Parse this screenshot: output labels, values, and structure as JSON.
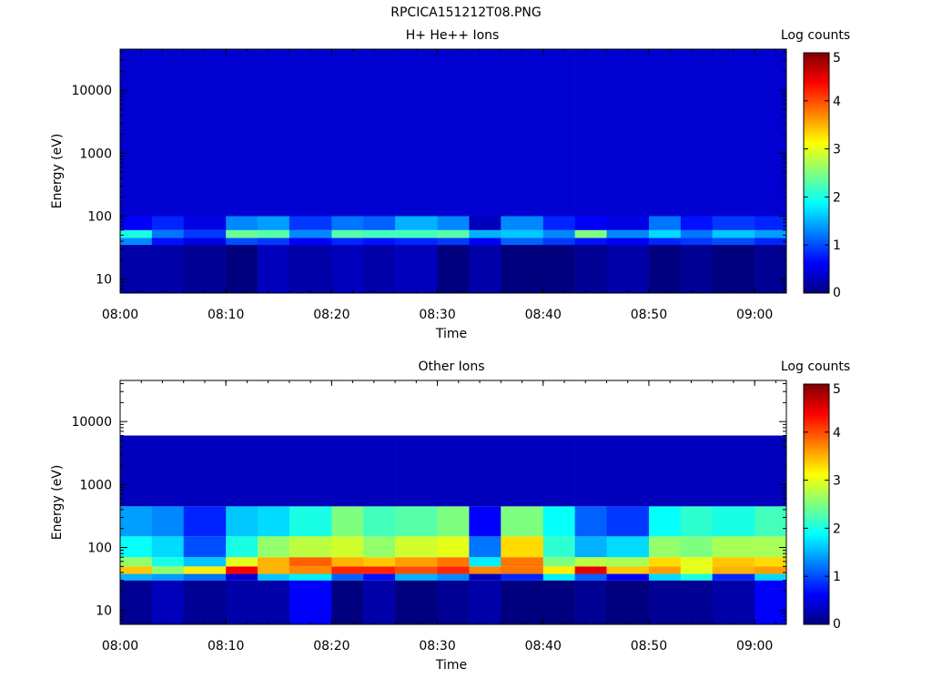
{
  "page_title": "RPCICA151212T08.PNG",
  "colormap": [
    "#00007f",
    "#0000ff",
    "#007fff",
    "#00ffff",
    "#7fff7f",
    "#ffff00",
    "#ff7f00",
    "#ff0000",
    "#7f0000"
  ],
  "chart_data": [
    {
      "type": "heatmap",
      "title": "H+ He++ Ions",
      "xlabel": "Time",
      "ylabel": "Energy (eV)",
      "y_scale": "log",
      "ylim": [
        6,
        45000
      ],
      "xlim": [
        "08:00",
        "09:03"
      ],
      "x_ticks": [
        "08:00",
        "08:10",
        "08:20",
        "08:30",
        "08:40",
        "08:50",
        "09:00"
      ],
      "y_ticks": [
        "10",
        "100",
        "1000",
        "10000"
      ],
      "colorbar": {
        "label": "Log counts",
        "range": [
          0,
          5
        ],
        "ticks": [
          "0",
          "1",
          "2",
          "3",
          "4",
          "5"
        ]
      },
      "time_bins": [
        "08:00",
        "08:03",
        "08:06",
        "08:10",
        "08:13",
        "08:16",
        "08:20",
        "08:23",
        "08:26",
        "08:30",
        "08:33",
        "08:36",
        "08:40",
        "08:43",
        "08:46",
        "08:50",
        "08:53",
        "08:56",
        "09:00"
      ],
      "energy_bands_eV": [
        {
          "range": [
            6,
            35
          ],
          "log_counts": [
            0.2,
            0.2,
            0.1,
            0,
            0.3,
            0.2,
            0.3,
            0.2,
            0.3,
            0,
            0.2,
            0,
            0,
            0.1,
            0.2,
            0,
            0.1,
            0,
            0.1
          ]
        },
        {
          "range": [
            35,
            45
          ],
          "log_counts": [
            1.3,
            0.7,
            0.5,
            1.0,
            0.9,
            0.6,
            0.8,
            0.7,
            0.8,
            0.9,
            0.6,
            1.1,
            0.9,
            0.7,
            0.6,
            0.8,
            0.9,
            1.0,
            0.8
          ]
        },
        {
          "range": [
            45,
            60
          ],
          "log_counts": [
            2.0,
            1.2,
            0.9,
            2.4,
            2.3,
            1.3,
            2.3,
            2.2,
            2.2,
            2.3,
            1.5,
            1.6,
            1.3,
            2.5,
            1.3,
            1.7,
            1.2,
            1.6,
            1.4
          ]
        },
        {
          "range": [
            60,
            100
          ],
          "log_counts": [
            0.6,
            0.8,
            0.5,
            1.3,
            1.4,
            0.9,
            1.2,
            1.1,
            1.5,
            1.3,
            0.3,
            1.3,
            0.8,
            0.6,
            0.5,
            1.2,
            0.7,
            0.9,
            0.8
          ]
        },
        {
          "range": [
            100,
            45000
          ],
          "log_counts": [
            0.4,
            0.4,
            0.4,
            0.4,
            0.4,
            0.4,
            0.4,
            0.4,
            0.4,
            0.4,
            0.4,
            0.4,
            0.4,
            0.4,
            0.4,
            0.4,
            0.4,
            0.4,
            0.4
          ]
        }
      ]
    },
    {
      "type": "heatmap",
      "title": "Other Ions",
      "xlabel": "Time",
      "ylabel": "Energy (eV)",
      "y_scale": "log",
      "ylim": [
        6,
        45000
      ],
      "xlim": [
        "08:00",
        "09:03"
      ],
      "x_ticks": [
        "08:00",
        "08:10",
        "08:20",
        "08:30",
        "08:40",
        "08:50",
        "09:00"
      ],
      "y_ticks": [
        "10",
        "100",
        "1000",
        "10000"
      ],
      "colorbar": {
        "label": "Log counts",
        "range": [
          0,
          5
        ],
        "ticks": [
          "0",
          "1",
          "2",
          "3",
          "4",
          "5"
        ]
      },
      "time_bins": [
        "08:00",
        "08:03",
        "08:06",
        "08:10",
        "08:13",
        "08:16",
        "08:20",
        "08:23",
        "08:26",
        "08:30",
        "08:33",
        "08:36",
        "08:40",
        "08:43",
        "08:46",
        "08:50",
        "08:53",
        "08:56",
        "09:00"
      ],
      "energy_bands_eV": [
        {
          "range": [
            6,
            30
          ],
          "log_counts": [
            0.1,
            0.3,
            0.1,
            0.2,
            0.2,
            0.6,
            0,
            0.2,
            0,
            0.1,
            0.2,
            0,
            0,
            0.1,
            0,
            0.1,
            0.1,
            0.2,
            0.6
          ]
        },
        {
          "range": [
            30,
            38
          ],
          "log_counts": [
            1.5,
            1.4,
            1.2,
            0.4,
            1.6,
            1.8,
            1.1,
            0.7,
            1.5,
            1.3,
            0.3,
            0.8,
            1.8,
            1.1,
            0.6,
            1.7,
            2.0,
            0.8,
            1.7
          ]
        },
        {
          "range": [
            38,
            50
          ],
          "log_counts": [
            3.4,
            2.6,
            3.2,
            4.4,
            3.5,
            3.7,
            4.2,
            4.2,
            4.0,
            4.2,
            3.7,
            3.8,
            3.2,
            4.5,
            3.4,
            3.6,
            3.0,
            3.5,
            3.6
          ]
        },
        {
          "range": [
            50,
            70
          ],
          "log_counts": [
            2.6,
            2.0,
            1.6,
            3.0,
            3.5,
            3.9,
            3.5,
            3.4,
            3.6,
            3.8,
            1.8,
            3.8,
            2.5,
            2.8,
            2.7,
            3.3,
            3.0,
            3.4,
            3.3
          ]
        },
        {
          "range": [
            70,
            150
          ],
          "log_counts": [
            1.9,
            1.7,
            1.0,
            2.0,
            2.6,
            2.8,
            2.9,
            2.6,
            2.9,
            3.0,
            1.2,
            3.3,
            2.1,
            1.5,
            1.7,
            2.6,
            2.5,
            2.7,
            2.7
          ]
        },
        {
          "range": [
            150,
            450
          ],
          "log_counts": [
            1.4,
            1.3,
            0.8,
            1.6,
            1.7,
            2.0,
            2.5,
            2.2,
            2.3,
            2.5,
            0.6,
            2.5,
            1.9,
            1.1,
            0.9,
            1.9,
            2.1,
            2.0,
            2.2
          ]
        },
        {
          "range": [
            450,
            6000
          ],
          "log_counts": [
            0.3,
            0.3,
            0.3,
            0.3,
            0.3,
            0.3,
            0.3,
            0.3,
            0.3,
            0.3,
            0.3,
            0.3,
            0.3,
            0.3,
            0.3,
            0.3,
            0.3,
            0.3,
            0.3
          ]
        }
      ]
    }
  ]
}
